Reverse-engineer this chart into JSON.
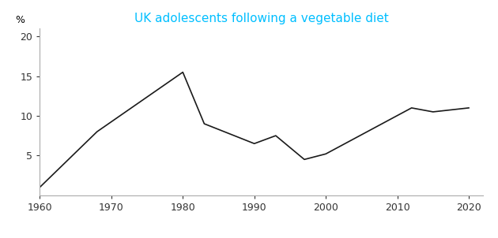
{
  "title": "UK adolescents following a vegetable diet",
  "title_color": "#00BFFF",
  "ylabel": "%",
  "x_values": [
    1960,
    1968,
    1980,
    1983,
    1990,
    1993,
    1997,
    2000,
    2012,
    2015,
    2020
  ],
  "y_values": [
    1,
    8,
    15.5,
    9,
    6.5,
    7.5,
    4.5,
    5.2,
    11,
    10.5,
    11
  ],
  "line_color": "#1a1a1a",
  "line_width": 1.2,
  "xlim": [
    1960,
    2022
  ],
  "ylim": [
    0,
    21
  ],
  "xticks": [
    1960,
    1970,
    1980,
    1990,
    2000,
    2010,
    2020
  ],
  "yticks": [
    5,
    10,
    15,
    20
  ],
  "background_color": "#ffffff",
  "title_fontsize": 11,
  "axis_fontsize": 9,
  "ylabel_fontsize": 9,
  "spine_color": "#aaaaaa"
}
